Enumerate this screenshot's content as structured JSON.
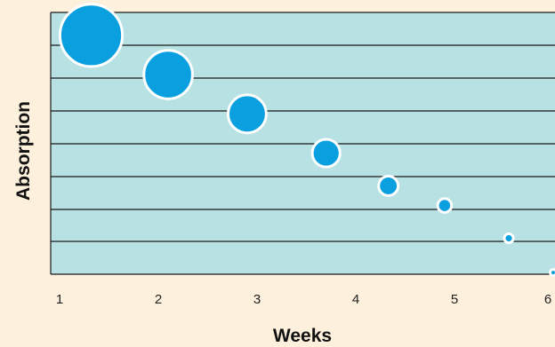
{
  "colors": {
    "page_background": "#fdf0dc",
    "plot_background": "#b7e1e2",
    "grid_line": "#1a1a1a",
    "bubble_fill": "#0aa0e0",
    "bubble_stroke": "#ffffff"
  },
  "chart_data": {
    "type": "scatter",
    "variant": "bubble",
    "title": "",
    "xlabel": "Weeks",
    "ylabel": "Absorption",
    "xlim": [
      1,
      6
    ],
    "ylim": [
      0,
      8
    ],
    "x_ticks": [
      1,
      2,
      3,
      4,
      5,
      6
    ],
    "y_tick_labels_shown": false,
    "grid": "horizontal",
    "legend": "none",
    "points": [
      {
        "x": 1.32,
        "y": 7.3,
        "size": 9
      },
      {
        "x": 2.1,
        "y": 6.1,
        "size": 7
      },
      {
        "x": 2.9,
        "y": 4.9,
        "size": 5.5
      },
      {
        "x": 3.7,
        "y": 3.7,
        "size": 4
      },
      {
        "x": 4.33,
        "y": 2.7,
        "size": 2.8
      },
      {
        "x": 4.9,
        "y": 2.1,
        "size": 2
      },
      {
        "x": 5.55,
        "y": 1.1,
        "size": 1.3
      },
      {
        "x": 6.0,
        "y": 0.05,
        "size": 0.9
      }
    ]
  }
}
